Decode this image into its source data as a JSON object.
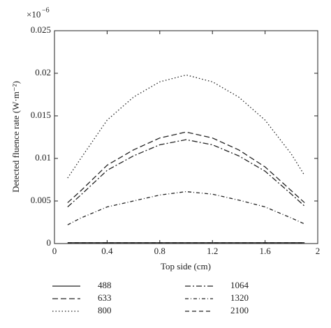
{
  "chart_data": {
    "type": "line",
    "x_label": "Top side (cm)",
    "y_label": "Detected fluence rate (W·m⁻²)",
    "y_scale_label": {
      "base": "×10",
      "exponent": "−6"
    },
    "x": [
      0.1,
      0.2,
      0.4,
      0.6,
      0.8,
      1.0,
      1.2,
      1.4,
      1.6,
      1.8,
      1.9
    ],
    "xlim": [
      0,
      2
    ],
    "xticks": [
      0,
      0.4,
      0.8,
      1.2,
      1.6,
      2
    ],
    "ylim": [
      0,
      0.025
    ],
    "yticks": [
      0,
      0.005,
      0.01,
      0.015,
      0.02,
      0.025
    ],
    "series": [
      {
        "name": "488",
        "color": "#222",
        "dash": "none",
        "values": [
          0.0001,
          0.0001,
          0.0001,
          0.0001,
          0.0001,
          0.0001,
          0.0001,
          0.0001,
          0.0001,
          0.0001,
          0.0001
        ]
      },
      {
        "name": "633",
        "color": "#222",
        "dash": "8,4",
        "values": [
          0.0048,
          0.0062,
          0.0092,
          0.011,
          0.0124,
          0.0131,
          0.0124,
          0.011,
          0.009,
          0.0062,
          0.0048
        ]
      },
      {
        "name": "800",
        "color": "#222",
        "dash": "1.5,3",
        "values": [
          0.0077,
          0.01,
          0.0145,
          0.0172,
          0.019,
          0.0198,
          0.019,
          0.0172,
          0.0145,
          0.0105,
          0.008
        ]
      },
      {
        "name": "1064",
        "color": "#222",
        "dash": "8,3,2,3",
        "values": [
          0.0043,
          0.0057,
          0.0086,
          0.0103,
          0.0116,
          0.0122,
          0.0116,
          0.0103,
          0.0085,
          0.0058,
          0.0044
        ]
      },
      {
        "name": "1320",
        "color": "#222",
        "dash": "5,3,1,3",
        "values": [
          0.0022,
          0.003,
          0.0043,
          0.005,
          0.0057,
          0.0061,
          0.0058,
          0.0051,
          0.0043,
          0.003,
          0.0023
        ]
      },
      {
        "name": "2100",
        "color": "#222",
        "dash": "6,4",
        "values": [
          0.0001,
          0.0001,
          0.0001,
          0.0001,
          0.0001,
          0.0001,
          0.0001,
          0.0001,
          0.0001,
          0.0001,
          0.0001
        ]
      }
    ]
  }
}
